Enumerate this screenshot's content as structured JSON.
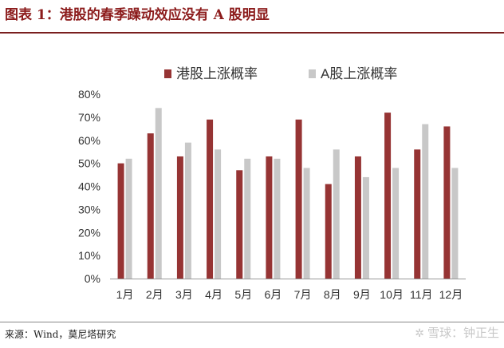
{
  "figure": {
    "title": "图表 1：港股的春季躁动效应没有 A 股明显",
    "source": "来源：Wind，莫尼塔研究",
    "watermark": "雪球：钟正生"
  },
  "colors": {
    "hk": "#963434",
    "a": "#c8c8c8",
    "title": "#8c1c1c"
  },
  "chart_data": {
    "type": "bar",
    "categories": [
      "1月",
      "2月",
      "3月",
      "4月",
      "5月",
      "6月",
      "7月",
      "8月",
      "9月",
      "10月",
      "11月",
      "12月"
    ],
    "series": [
      {
        "name": "港股上涨概率",
        "values": [
          50,
          63,
          53,
          69,
          47,
          53,
          69,
          41,
          53,
          72,
          56,
          66
        ]
      },
      {
        "name": "A股上涨概率",
        "values": [
          52,
          74,
          59,
          56,
          52,
          52,
          48,
          56,
          44,
          48,
          67,
          48
        ]
      }
    ],
    "yticks": [
      "0%",
      "10%",
      "20%",
      "30%",
      "40%",
      "50%",
      "60%",
      "70%",
      "80%"
    ],
    "ylim": [
      0,
      80
    ],
    "legend_position": "top-center",
    "grid": false
  }
}
